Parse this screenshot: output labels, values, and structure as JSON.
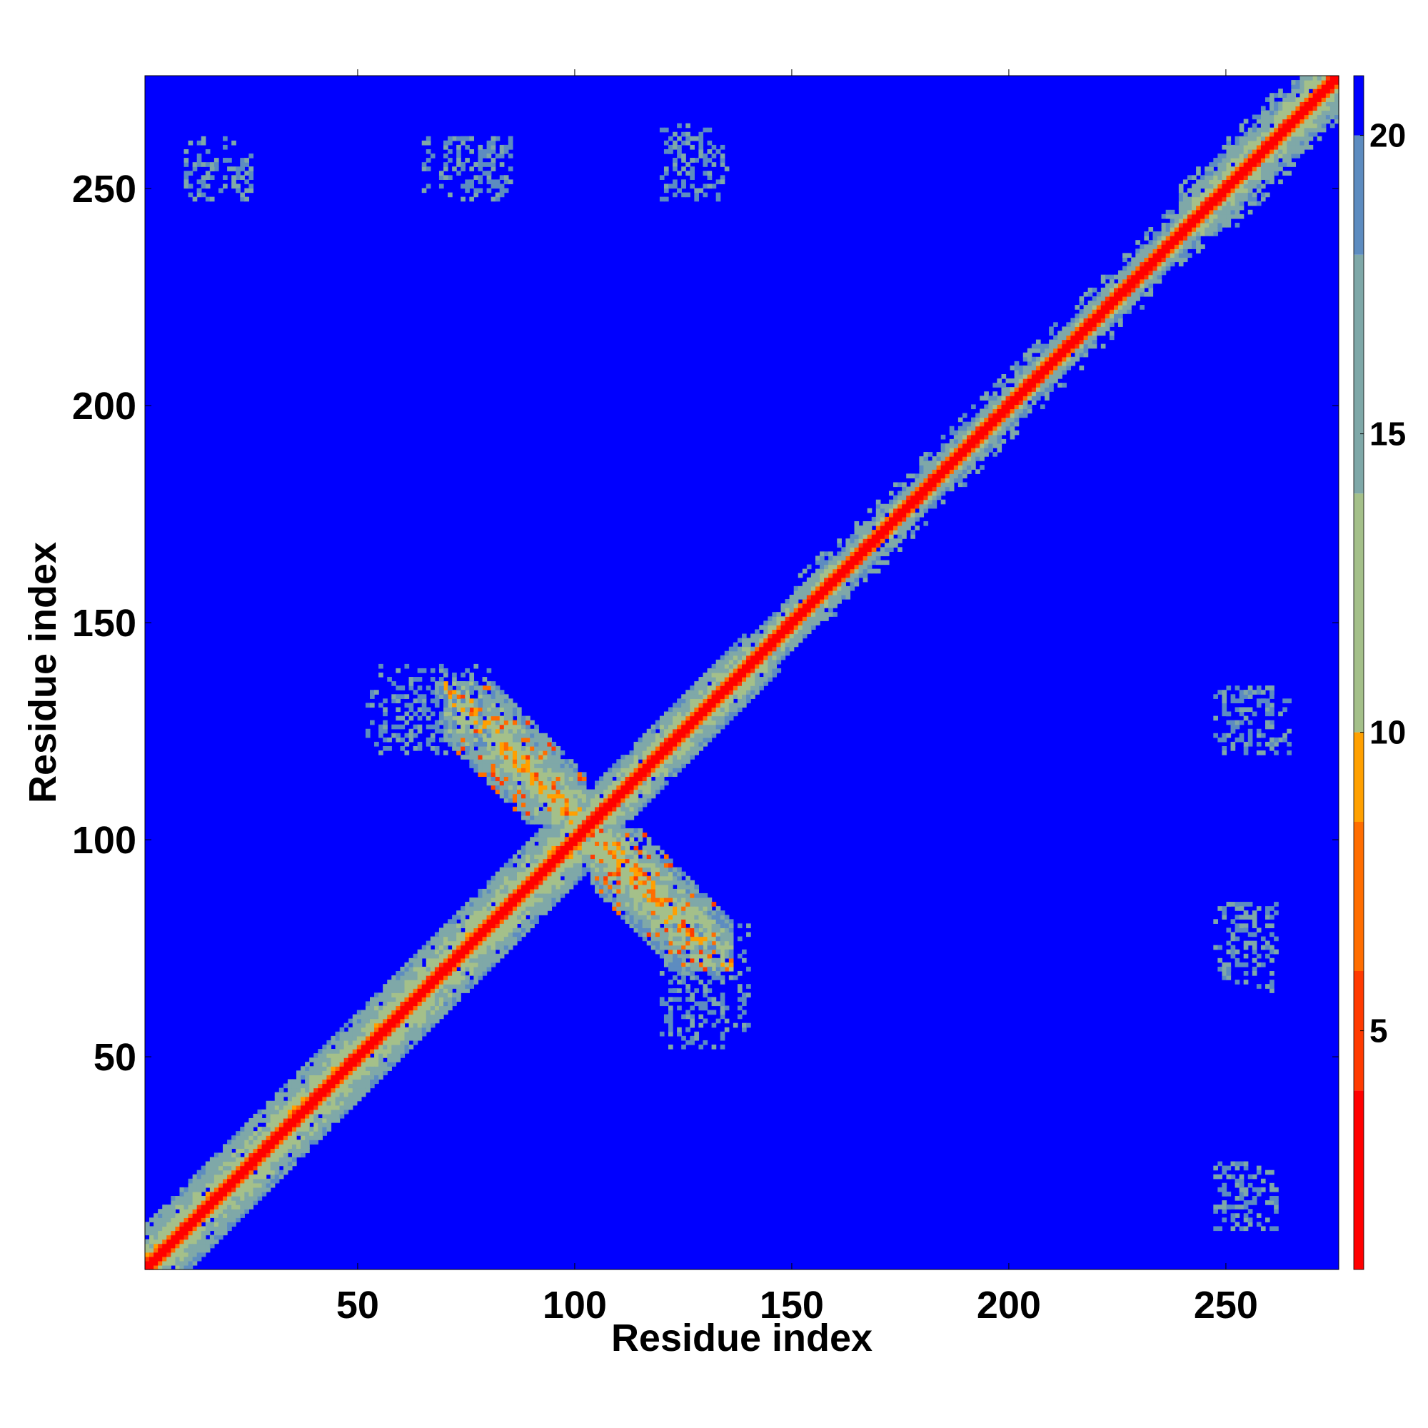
{
  "chart_data": {
    "type": "heatmap",
    "title": "",
    "xlabel": "Residue index",
    "ylabel": "Residue index",
    "xlim": [
      1,
      276
    ],
    "ylim": [
      1,
      276
    ],
    "xticks": [
      50,
      100,
      150,
      200,
      250
    ],
    "yticks": [
      50,
      100,
      150,
      200,
      250
    ],
    "colorbar": {
      "range": [
        1,
        21
      ],
      "ticks": [
        5,
        10,
        15,
        20
      ],
      "colors": [
        "#ff0000",
        "#ff3a00",
        "#ff6d00",
        "#ffa000",
        "#a4c08a",
        "#7fa8a8",
        "#5d8cc0",
        "#0000ff"
      ],
      "stops": [
        1,
        4,
        6,
        8.5,
        10,
        14,
        18,
        20,
        21
      ]
    },
    "structure": {
      "diagonal": "symmetric distance matrix, values near 1 along diagonal increasing to 20+ off-diagonal",
      "cross_contact_region": {
        "x_range": [
          70,
          135
        ],
        "y_range": [
          70,
          135
        ],
        "description": "anti-diagonal contact band between residues ~72-100 and ~108-133"
      },
      "off_diagonal_patches": [
        {
          "x": [
            10,
            25
          ],
          "y": [
            248,
            262
          ]
        },
        {
          "x": [
            70,
            85
          ],
          "y": [
            248,
            262
          ]
        },
        {
          "x": [
            120,
            135
          ],
          "y": [
            248,
            265
          ]
        },
        {
          "x": [
            52,
            70
          ],
          "y": [
            122,
            135
          ]
        },
        {
          "x": [
            250,
            262
          ],
          "y": [
            120,
            135
          ]
        },
        {
          "x": [
            120,
            140
          ],
          "y": [
            55,
            80
          ]
        },
        {
          "x": [
            250,
            262
          ],
          "y": [
            65,
            85
          ]
        },
        {
          "x": [
            250,
            258
          ],
          "y": [
            10,
            25
          ]
        }
      ]
    }
  }
}
